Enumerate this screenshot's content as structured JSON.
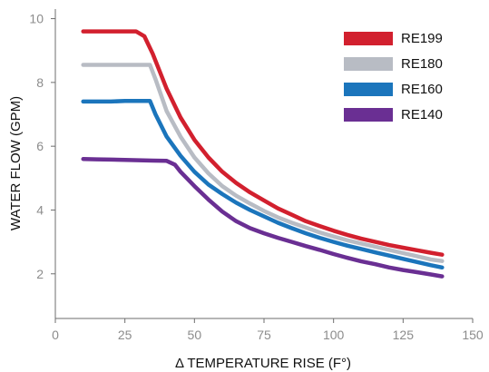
{
  "chart_data": {
    "type": "line",
    "xlabel": "Δ TEMPERATURE RISE (F°)",
    "ylabel": "WATER FLOW (GPM)",
    "xlim": [
      0,
      150
    ],
    "ylim": [
      0.6,
      10.3
    ],
    "x_ticks": [
      "0",
      "25",
      "50",
      "75",
      "100",
      "125",
      "150"
    ],
    "y_ticks": [
      "2",
      "4",
      "6",
      "8",
      "10"
    ],
    "grid": false,
    "legend_position": "top-right",
    "series": [
      {
        "name": "RE199",
        "color": "#d2202e",
        "points": [
          [
            10,
            9.6
          ],
          [
            15,
            9.6
          ],
          [
            20,
            9.6
          ],
          [
            25,
            9.6
          ],
          [
            29,
            9.6
          ],
          [
            32,
            9.45
          ],
          [
            35,
            8.9
          ],
          [
            40,
            7.8
          ],
          [
            45,
            6.9
          ],
          [
            50,
            6.2
          ],
          [
            55,
            5.65
          ],
          [
            60,
            5.2
          ],
          [
            65,
            4.85
          ],
          [
            70,
            4.55
          ],
          [
            75,
            4.3
          ],
          [
            80,
            4.05
          ],
          [
            85,
            3.85
          ],
          [
            90,
            3.65
          ],
          [
            95,
            3.5
          ],
          [
            100,
            3.35
          ],
          [
            105,
            3.22
          ],
          [
            110,
            3.1
          ],
          [
            115,
            3.0
          ],
          [
            120,
            2.9
          ],
          [
            125,
            2.82
          ],
          [
            130,
            2.74
          ],
          [
            135,
            2.66
          ],
          [
            139,
            2.6
          ]
        ]
      },
      {
        "name": "RE180",
        "color": "#b8bcc4",
        "points": [
          [
            10,
            8.55
          ],
          [
            15,
            8.55
          ],
          [
            20,
            8.55
          ],
          [
            25,
            8.55
          ],
          [
            30,
            8.55
          ],
          [
            34,
            8.55
          ],
          [
            36,
            8.1
          ],
          [
            40,
            7.1
          ],
          [
            45,
            6.3
          ],
          [
            50,
            5.65
          ],
          [
            55,
            5.15
          ],
          [
            60,
            4.75
          ],
          [
            65,
            4.45
          ],
          [
            70,
            4.2
          ],
          [
            75,
            3.97
          ],
          [
            80,
            3.77
          ],
          [
            85,
            3.6
          ],
          [
            90,
            3.45
          ],
          [
            95,
            3.3
          ],
          [
            100,
            3.17
          ],
          [
            105,
            3.05
          ],
          [
            110,
            2.95
          ],
          [
            115,
            2.85
          ],
          [
            120,
            2.75
          ],
          [
            125,
            2.65
          ],
          [
            130,
            2.55
          ],
          [
            135,
            2.45
          ],
          [
            139,
            2.4
          ]
        ]
      },
      {
        "name": "RE160",
        "color": "#1b75bc",
        "points": [
          [
            10,
            7.4
          ],
          [
            15,
            7.4
          ],
          [
            20,
            7.4
          ],
          [
            25,
            7.42
          ],
          [
            30,
            7.42
          ],
          [
            34,
            7.42
          ],
          [
            36,
            7.0
          ],
          [
            40,
            6.3
          ],
          [
            45,
            5.7
          ],
          [
            50,
            5.2
          ],
          [
            55,
            4.8
          ],
          [
            60,
            4.5
          ],
          [
            65,
            4.23
          ],
          [
            70,
            4.0
          ],
          [
            75,
            3.8
          ],
          [
            80,
            3.6
          ],
          [
            85,
            3.43
          ],
          [
            90,
            3.27
          ],
          [
            95,
            3.13
          ],
          [
            100,
            3.0
          ],
          [
            105,
            2.88
          ],
          [
            110,
            2.78
          ],
          [
            115,
            2.67
          ],
          [
            120,
            2.57
          ],
          [
            125,
            2.47
          ],
          [
            130,
            2.37
          ],
          [
            135,
            2.27
          ],
          [
            139,
            2.2
          ]
        ]
      },
      {
        "name": "RE140",
        "color": "#6a2f93",
        "points": [
          [
            10,
            5.6
          ],
          [
            15,
            5.59
          ],
          [
            20,
            5.58
          ],
          [
            25,
            5.57
          ],
          [
            30,
            5.56
          ],
          [
            35,
            5.55
          ],
          [
            40,
            5.54
          ],
          [
            43,
            5.42
          ],
          [
            45,
            5.2
          ],
          [
            50,
            4.75
          ],
          [
            55,
            4.33
          ],
          [
            60,
            3.95
          ],
          [
            65,
            3.65
          ],
          [
            70,
            3.43
          ],
          [
            75,
            3.27
          ],
          [
            80,
            3.13
          ],
          [
            85,
            3.0
          ],
          [
            90,
            2.87
          ],
          [
            95,
            2.75
          ],
          [
            100,
            2.62
          ],
          [
            105,
            2.5
          ],
          [
            110,
            2.39
          ],
          [
            115,
            2.3
          ],
          [
            120,
            2.2
          ],
          [
            125,
            2.12
          ],
          [
            130,
            2.05
          ],
          [
            135,
            1.98
          ],
          [
            139,
            1.92
          ]
        ]
      }
    ]
  }
}
